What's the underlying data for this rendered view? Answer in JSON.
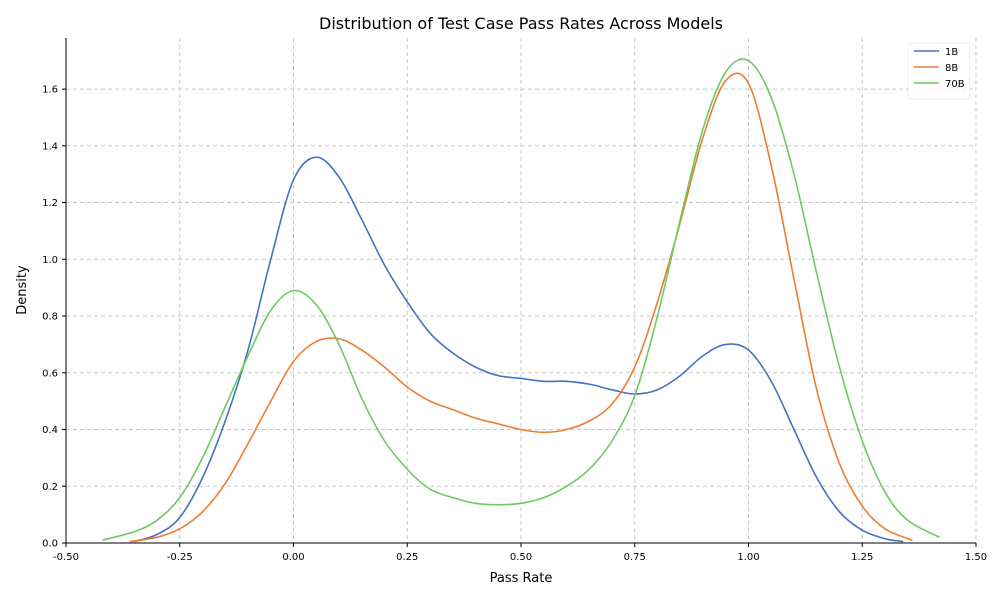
{
  "chart_data": {
    "type": "line",
    "title": "Distribution of Test Case Pass Rates Across Models",
    "xlabel": "Pass Rate",
    "ylabel": "Density",
    "xlim": [
      -0.5,
      1.5
    ],
    "ylim": [
      0,
      1.78
    ],
    "xticks": [
      -0.5,
      -0.25,
      0.0,
      0.25,
      0.5,
      0.75,
      1.0,
      1.25,
      1.5
    ],
    "xtick_labels": [
      "-0.50",
      "-0.25",
      "0.00",
      "0.25",
      "0.50",
      "0.75",
      "1.00",
      "1.25",
      "1.50"
    ],
    "yticks": [
      0.0,
      0.2,
      0.4,
      0.6,
      0.8,
      1.0,
      1.2,
      1.4,
      1.6
    ],
    "ytick_labels": [
      "0.0",
      "0.2",
      "0.4",
      "0.6",
      "0.8",
      "1.0",
      "1.2",
      "1.4",
      "1.6"
    ],
    "grid": true,
    "legend_position": "top-right",
    "series": [
      {
        "name": "1B",
        "color": "#4472c4",
        "x": [
          -0.35,
          -0.3,
          -0.25,
          -0.2,
          -0.15,
          -0.1,
          -0.05,
          0.0,
          0.05,
          0.1,
          0.15,
          0.2,
          0.25,
          0.3,
          0.35,
          0.4,
          0.45,
          0.5,
          0.55,
          0.6,
          0.65,
          0.7,
          0.75,
          0.8,
          0.85,
          0.9,
          0.95,
          1.0,
          1.05,
          1.1,
          1.15,
          1.2,
          1.25,
          1.3,
          1.34
        ],
        "y": [
          0.005,
          0.03,
          0.09,
          0.23,
          0.43,
          0.68,
          1.0,
          1.28,
          1.36,
          1.29,
          1.14,
          0.98,
          0.85,
          0.74,
          0.67,
          0.62,
          0.59,
          0.58,
          0.57,
          0.57,
          0.56,
          0.54,
          0.525,
          0.54,
          0.59,
          0.66,
          0.7,
          0.68,
          0.57,
          0.4,
          0.23,
          0.11,
          0.045,
          0.015,
          0.005
        ]
      },
      {
        "name": "8B",
        "color": "#ed7d31",
        "x": [
          -0.36,
          -0.3,
          -0.25,
          -0.2,
          -0.15,
          -0.1,
          -0.05,
          0.0,
          0.05,
          0.1,
          0.15,
          0.2,
          0.25,
          0.3,
          0.35,
          0.4,
          0.45,
          0.5,
          0.55,
          0.6,
          0.65,
          0.7,
          0.75,
          0.8,
          0.85,
          0.9,
          0.95,
          1.0,
          1.05,
          1.1,
          1.15,
          1.2,
          1.25,
          1.3,
          1.36
        ],
        "y": [
          0.005,
          0.02,
          0.05,
          0.11,
          0.21,
          0.35,
          0.5,
          0.64,
          0.71,
          0.72,
          0.68,
          0.62,
          0.55,
          0.5,
          0.47,
          0.44,
          0.42,
          0.4,
          0.39,
          0.4,
          0.43,
          0.49,
          0.62,
          0.85,
          1.13,
          1.43,
          1.63,
          1.62,
          1.33,
          0.93,
          0.54,
          0.28,
          0.13,
          0.05,
          0.01
        ]
      },
      {
        "name": "70B",
        "color": "#6ccb5f",
        "x": [
          -0.42,
          -0.35,
          -0.3,
          -0.25,
          -0.2,
          -0.15,
          -0.1,
          -0.05,
          0.0,
          0.05,
          0.1,
          0.15,
          0.2,
          0.25,
          0.3,
          0.35,
          0.4,
          0.45,
          0.5,
          0.55,
          0.6,
          0.65,
          0.7,
          0.75,
          0.8,
          0.85,
          0.9,
          0.95,
          1.0,
          1.05,
          1.1,
          1.15,
          1.2,
          1.25,
          1.3,
          1.35,
          1.42
        ],
        "y": [
          0.01,
          0.04,
          0.08,
          0.16,
          0.3,
          0.48,
          0.66,
          0.82,
          0.89,
          0.84,
          0.7,
          0.51,
          0.36,
          0.26,
          0.19,
          0.16,
          0.14,
          0.135,
          0.14,
          0.16,
          0.2,
          0.26,
          0.36,
          0.52,
          0.8,
          1.14,
          1.46,
          1.66,
          1.7,
          1.57,
          1.3,
          0.95,
          0.62,
          0.36,
          0.18,
          0.08,
          0.02
        ]
      }
    ]
  }
}
